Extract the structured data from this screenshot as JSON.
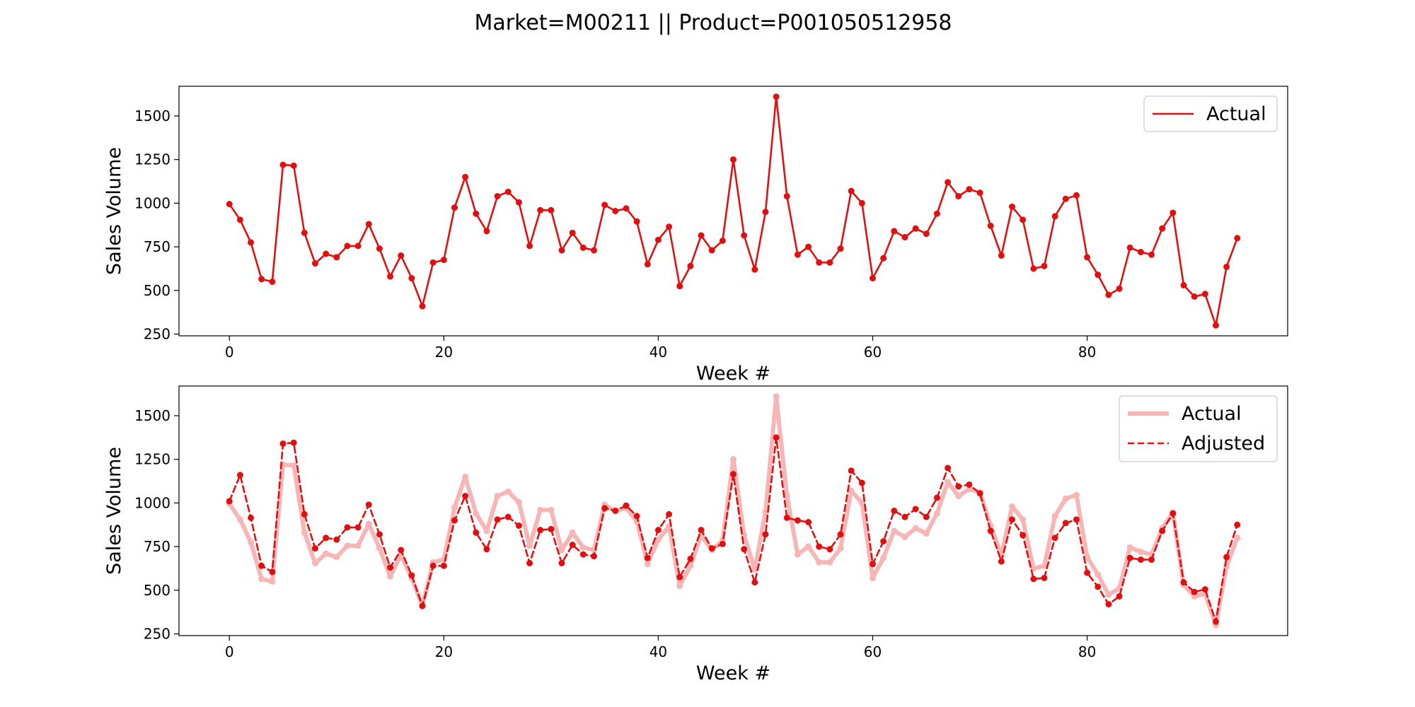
{
  "figure_title": "Market=M00211 || Product=P001050512958",
  "colors": {
    "actual": "#e01010",
    "actual_faded": "#f7b5b5",
    "adjusted": "#e01010",
    "axis": "#000000",
    "background": "#ffffff"
  },
  "chart_data": [
    {
      "type": "line",
      "xlabel": "Week #",
      "ylabel": "Sales Volume",
      "xlim": [
        -4.7,
        98.7
      ],
      "ylim": [
        240,
        1670
      ],
      "xticks": [
        0,
        20,
        40,
        60,
        80
      ],
      "yticks": [
        250,
        500,
        750,
        1000,
        1250,
        1500
      ],
      "grid": false,
      "legend_position": "top-right",
      "x": [
        0,
        1,
        2,
        3,
        4,
        5,
        6,
        7,
        8,
        9,
        10,
        11,
        12,
        13,
        14,
        15,
        16,
        17,
        18,
        19,
        20,
        21,
        22,
        23,
        24,
        25,
        26,
        27,
        28,
        29,
        30,
        31,
        32,
        33,
        34,
        35,
        36,
        37,
        38,
        39,
        40,
        41,
        42,
        43,
        44,
        45,
        46,
        47,
        48,
        49,
        50,
        51,
        52,
        53,
        54,
        55,
        56,
        57,
        58,
        59,
        60,
        61,
        62,
        63,
        64,
        65,
        66,
        67,
        68,
        69,
        70,
        71,
        72,
        73,
        74,
        75,
        76,
        77,
        78,
        79,
        80,
        81,
        82,
        83,
        84,
        85,
        86,
        87,
        88,
        89,
        90,
        91,
        92,
        93,
        94
      ],
      "series": [
        {
          "name": "Actual",
          "style": "solid",
          "values": [
            995,
            905,
            775,
            565,
            550,
            1220,
            1215,
            830,
            655,
            710,
            690,
            755,
            755,
            880,
            740,
            580,
            700,
            570,
            410,
            660,
            675,
            975,
            1150,
            940,
            840,
            1040,
            1065,
            1005,
            755,
            960,
            960,
            730,
            830,
            745,
            730,
            990,
            955,
            970,
            895,
            650,
            790,
            865,
            525,
            640,
            815,
            730,
            785,
            1250,
            815,
            620,
            950,
            1610,
            1040,
            705,
            750,
            660,
            660,
            740,
            1070,
            1000,
            570,
            685,
            840,
            805,
            855,
            825,
            940,
            1120,
            1040,
            1080,
            1060,
            870,
            700,
            980,
            905,
            625,
            640,
            925,
            1025,
            1045,
            690,
            590,
            475,
            510,
            745,
            720,
            705,
            855,
            945,
            530,
            465,
            480,
            300,
            635,
            800
          ]
        }
      ]
    },
    {
      "type": "line",
      "xlabel": "Week #",
      "ylabel": "Sales Volume",
      "xlim": [
        -4.7,
        98.7
      ],
      "ylim": [
        240,
        1670
      ],
      "xticks": [
        0,
        20,
        40,
        60,
        80
      ],
      "yticks": [
        250,
        500,
        750,
        1000,
        1250,
        1500
      ],
      "grid": false,
      "legend_position": "top-right",
      "x": [
        0,
        1,
        2,
        3,
        4,
        5,
        6,
        7,
        8,
        9,
        10,
        11,
        12,
        13,
        14,
        15,
        16,
        17,
        18,
        19,
        20,
        21,
        22,
        23,
        24,
        25,
        26,
        27,
        28,
        29,
        30,
        31,
        32,
        33,
        34,
        35,
        36,
        37,
        38,
        39,
        40,
        41,
        42,
        43,
        44,
        45,
        46,
        47,
        48,
        49,
        50,
        51,
        52,
        53,
        54,
        55,
        56,
        57,
        58,
        59,
        60,
        61,
        62,
        63,
        64,
        65,
        66,
        67,
        68,
        69,
        70,
        71,
        72,
        73,
        74,
        75,
        76,
        77,
        78,
        79,
        80,
        81,
        82,
        83,
        84,
        85,
        86,
        87,
        88,
        89,
        90,
        91,
        92,
        93,
        94
      ],
      "series": [
        {
          "name": "Actual",
          "style": "solid-faded",
          "values": [
            995,
            905,
            775,
            565,
            550,
            1220,
            1215,
            830,
            655,
            710,
            690,
            755,
            755,
            880,
            740,
            580,
            700,
            570,
            410,
            660,
            675,
            975,
            1150,
            940,
            840,
            1040,
            1065,
            1005,
            755,
            960,
            960,
            730,
            830,
            745,
            730,
            990,
            955,
            970,
            895,
            650,
            790,
            865,
            525,
            640,
            815,
            730,
            785,
            1250,
            815,
            620,
            950,
            1610,
            1040,
            705,
            750,
            660,
            660,
            740,
            1070,
            1000,
            570,
            685,
            840,
            805,
            855,
            825,
            940,
            1120,
            1040,
            1080,
            1060,
            870,
            700,
            980,
            905,
            625,
            640,
            925,
            1025,
            1045,
            690,
            590,
            475,
            510,
            745,
            720,
            705,
            855,
            945,
            530,
            465,
            480,
            300,
            635,
            800
          ]
        },
        {
          "name": "Adjusted",
          "style": "dashed",
          "values": [
            1010,
            1160,
            915,
            640,
            605,
            1340,
            1345,
            935,
            740,
            800,
            790,
            860,
            860,
            990,
            820,
            630,
            730,
            585,
            410,
            640,
            640,
            900,
            1040,
            830,
            735,
            905,
            920,
            870,
            655,
            845,
            850,
            655,
            760,
            705,
            695,
            970,
            955,
            985,
            925,
            685,
            845,
            935,
            575,
            680,
            845,
            740,
            765,
            1165,
            735,
            545,
            820,
            1375,
            915,
            900,
            890,
            750,
            735,
            820,
            1185,
            1115,
            650,
            780,
            955,
            920,
            965,
            920,
            1030,
            1200,
            1095,
            1105,
            1055,
            840,
            665,
            905,
            815,
            565,
            570,
            800,
            885,
            905,
            600,
            520,
            420,
            465,
            685,
            675,
            675,
            840,
            940,
            545,
            490,
            505,
            320,
            690,
            875
          ]
        }
      ]
    }
  ]
}
